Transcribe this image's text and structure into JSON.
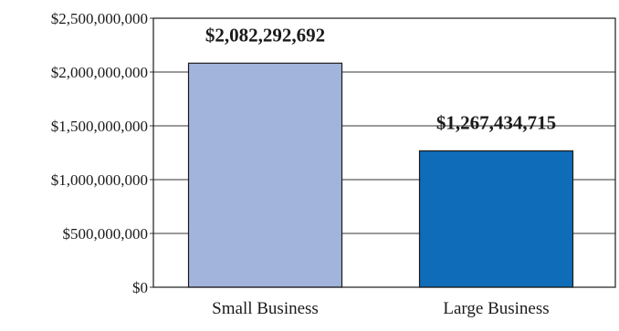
{
  "chart_data": {
    "type": "bar",
    "categories": [
      "Small Business",
      "Large Business"
    ],
    "values": [
      2082292692,
      1267434715
    ],
    "data_labels": [
      "$2,082,292,692",
      "$1,267,434,715"
    ],
    "ylim": [
      0,
      2500000000
    ],
    "y_ticks": [
      0,
      500000000,
      1000000000,
      1500000000,
      2000000000,
      2500000000
    ],
    "y_tick_labels": [
      "$0",
      "$500,000,000",
      "$1,000,000,000",
      "$1,500,000,000",
      "$2,000,000,000",
      "$2,500,000,000"
    ],
    "title": "",
    "xlabel": "",
    "ylabel": "",
    "grid": true,
    "bar_colors": [
      "#a3b4dc",
      "#0f6cb8"
    ]
  }
}
